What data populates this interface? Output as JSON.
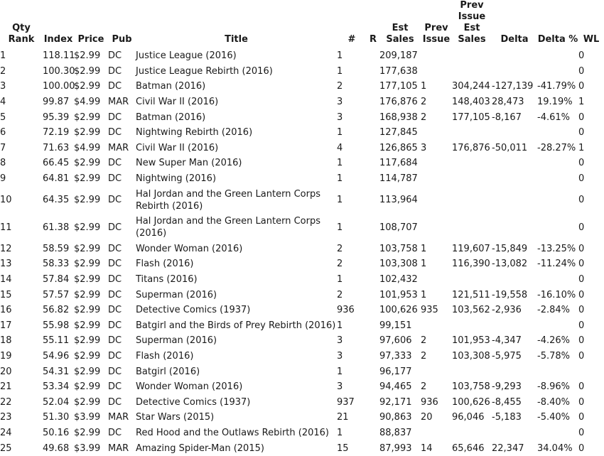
{
  "page": {
    "background_color": "#ffffff",
    "text_color": "#1a1a1a"
  },
  "table": {
    "columns": [
      {
        "key": "qty_rank",
        "label": "Qty\nRank"
      },
      {
        "key": "index",
        "label": "Index"
      },
      {
        "key": "price",
        "label": "Price"
      },
      {
        "key": "pub",
        "label": "Pub"
      },
      {
        "key": "title",
        "label": "Title"
      },
      {
        "key": "issue_num",
        "label": "#"
      },
      {
        "key": "reorder",
        "label": "R"
      },
      {
        "key": "est_sales",
        "label": "Est\nSales"
      },
      {
        "key": "prev_issue",
        "label": "Prev\nIssue"
      },
      {
        "key": "prev_issue_est_sales",
        "label": "Prev\nIssue\nEst\nSales"
      },
      {
        "key": "delta",
        "label": "Delta"
      },
      {
        "key": "delta_pct",
        "label": "Delta %"
      },
      {
        "key": "wl",
        "label": "WL"
      }
    ],
    "rows": [
      [
        "1",
        "118.11",
        "$2.99",
        "DC",
        "Justice League (2016)",
        "1",
        "",
        "209,187",
        "",
        "",
        "",
        "",
        "0"
      ],
      [
        "2",
        "100.30",
        "$2.99",
        "DC",
        "Justice League Rebirth (2016)",
        "1",
        "",
        "177,638",
        "",
        "",
        "",
        "",
        "0"
      ],
      [
        "3",
        "100.00",
        "$2.99",
        "DC",
        "Batman (2016)",
        "2",
        "",
        "177,105",
        "1",
        "304,244",
        "-127,139",
        "-41.79%",
        "0"
      ],
      [
        "4",
        "99.87",
        "$4.99",
        "MAR",
        "Civil War II (2016)",
        "3",
        "",
        "176,876",
        "2",
        "148,403",
        "28,473",
        "19.19%",
        "1"
      ],
      [
        "5",
        "95.39",
        "$2.99",
        "DC",
        "Batman (2016)",
        "3",
        "",
        "168,938",
        "2",
        "177,105",
        "-8,167",
        "-4.61%",
        "0"
      ],
      [
        "6",
        "72.19",
        "$2.99",
        "DC",
        "Nightwing Rebirth (2016)",
        "1",
        "",
        "127,845",
        "",
        "",
        "",
        "",
        "0"
      ],
      [
        "7",
        "71.63",
        "$4.99",
        "MAR",
        "Civil War II (2016)",
        "4",
        "",
        "126,865",
        "3",
        "176,876",
        "-50,011",
        "-28.27%",
        "1"
      ],
      [
        "8",
        "66.45",
        "$2.99",
        "DC",
        "New Super Man (2016)",
        "1",
        "",
        "117,684",
        "",
        "",
        "",
        "",
        "0"
      ],
      [
        "9",
        "64.81",
        "$2.99",
        "DC",
        "Nightwing (2016)",
        "1",
        "",
        "114,787",
        "",
        "",
        "",
        "",
        "0"
      ],
      [
        "10",
        "64.35",
        "$2.99",
        "DC",
        "Hal Jordan and the Green Lantern Corps\nRebirth (2016)",
        "1",
        "",
        "113,964",
        "",
        "",
        "",
        "",
        "0"
      ],
      [
        "11",
        "61.38",
        "$2.99",
        "DC",
        "Hal Jordan and the Green Lantern Corps\n(2016)",
        "1",
        "",
        "108,707",
        "",
        "",
        "",
        "",
        "0"
      ],
      [
        "12",
        "58.59",
        "$2.99",
        "DC",
        "Wonder Woman (2016)",
        "2",
        "",
        "103,758",
        "1",
        "119,607",
        "-15,849",
        "-13.25%",
        "0"
      ],
      [
        "13",
        "58.33",
        "$2.99",
        "DC",
        "Flash (2016)",
        "2",
        "",
        "103,308",
        "1",
        "116,390",
        "-13,082",
        "-11.24%",
        "0"
      ],
      [
        "14",
        "57.84",
        "$2.99",
        "DC",
        "Titans (2016)",
        "1",
        "",
        "102,432",
        "",
        "",
        "",
        "",
        "0"
      ],
      [
        "15",
        "57.57",
        "$2.99",
        "DC",
        "Superman (2016)",
        "2",
        "",
        "101,953",
        "1",
        "121,511",
        "-19,558",
        "-16.10%",
        "0"
      ],
      [
        "16",
        "56.82",
        "$2.99",
        "DC",
        "Detective Comics (1937)",
        "936",
        "",
        "100,626",
        "935",
        "103,562",
        "-2,936",
        "-2.84%",
        "0"
      ],
      [
        "17",
        "55.98",
        "$2.99",
        "DC",
        "Batgirl and the Birds of Prey Rebirth (2016)",
        "1",
        "",
        "99,151",
        "",
        "",
        "",
        "",
        "0"
      ],
      [
        "18",
        "55.11",
        "$2.99",
        "DC",
        "Superman (2016)",
        "3",
        "",
        "97,606",
        "2",
        "101,953",
        "-4,347",
        "-4.26%",
        "0"
      ],
      [
        "19",
        "54.96",
        "$2.99",
        "DC",
        "Flash (2016)",
        "3",
        "",
        "97,333",
        "2",
        "103,308",
        "-5,975",
        "-5.78%",
        "0"
      ],
      [
        "20",
        "54.31",
        "$2.99",
        "DC",
        "Batgirl (2016)",
        "1",
        "",
        "96,177",
        "",
        "",
        "",
        "",
        ""
      ],
      [
        "21",
        "53.34",
        "$2.99",
        "DC",
        "Wonder Woman (2016)",
        "3",
        "",
        "94,465",
        "2",
        "103,758",
        "-9,293",
        "-8.96%",
        "0"
      ],
      [
        "22",
        "52.04",
        "$2.99",
        "DC",
        "Detective Comics (1937)",
        "937",
        "",
        "92,171",
        "936",
        "100,626",
        "-8,455",
        "-8.40%",
        "0"
      ],
      [
        "23",
        "51.30",
        "$3.99",
        "MAR",
        "Star Wars (2015)",
        "21",
        "",
        "90,863",
        "20",
        "96,046",
        "-5,183",
        "-5.40%",
        "0"
      ],
      [
        "24",
        "50.16",
        "$2.99",
        "DC",
        "Red Hood and the Outlaws Rebirth (2016)",
        "1",
        "",
        "88,837",
        "",
        "",
        "",
        "",
        "0"
      ],
      [
        "25",
        "49.68",
        "$3.99",
        "MAR",
        "Amazing Spider-Man (2015)",
        "15",
        "",
        "87,993",
        "14",
        "65,646",
        "22,347",
        "34.04%",
        "0"
      ]
    ]
  }
}
